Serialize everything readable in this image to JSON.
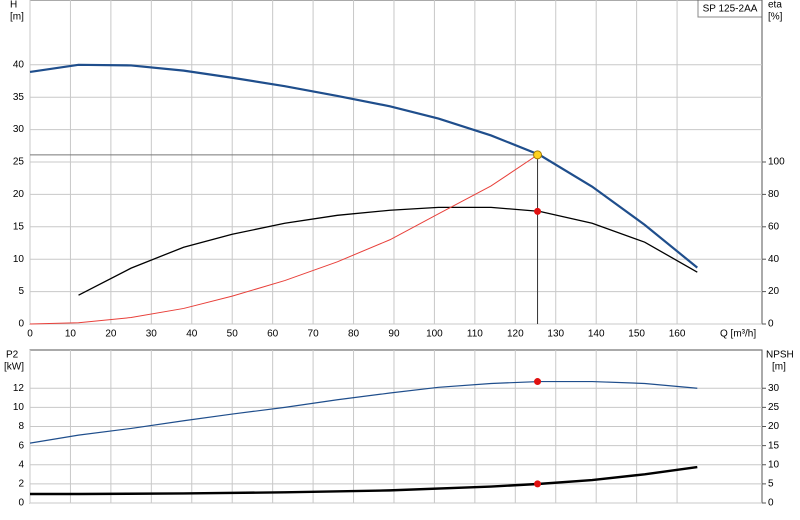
{
  "chart_data": [
    {
      "type": "line",
      "title": "SP 125-2AA",
      "ylabel": "H",
      "ylabel_unit": "[m]",
      "y2label": "eta",
      "y2label_unit": "[%]",
      "xlabel": "Q [m³/h]",
      "xlim": [
        0,
        181
      ],
      "xticks": [
        0,
        10,
        20,
        30,
        40,
        50,
        60,
        70,
        80,
        90,
        100,
        110,
        120,
        130,
        140,
        150,
        160
      ],
      "ylim": [
        0,
        50
      ],
      "yticks": [
        0,
        5,
        10,
        15,
        20,
        25,
        30,
        35,
        40
      ],
      "y2lim": [
        0,
        200
      ],
      "y2ticks": [
        0,
        20,
        40,
        60,
        80,
        100
      ],
      "grid": true,
      "series": [
        {
          "color": "#1f4e8c",
          "width": 2.2,
          "x": [
            0,
            12,
            25,
            38,
            50,
            63,
            76,
            89,
            101,
            114,
            126,
            139,
            152,
            165
          ],
          "values": [
            38.9,
            40,
            39.9,
            39.1,
            38,
            36.7,
            35.2,
            33.6,
            31.7,
            29.1,
            26.1,
            21.2,
            15.3,
            8.7
          ]
        },
        {
          "color": "#000000",
          "width": 1.3,
          "axis": "y2",
          "x": [
            12,
            25,
            38,
            50,
            63,
            76,
            89,
            101,
            114,
            126,
            139,
            152,
            165
          ],
          "values": [
            17.8,
            34.5,
            47.4,
            55.4,
            62.2,
            67.1,
            70.2,
            72,
            72,
            69.5,
            62.2,
            50.5,
            32
          ]
        },
        {
          "color": "#e8403a",
          "width": 1,
          "x": [
            0,
            12,
            25,
            38,
            50,
            63,
            76,
            89,
            101,
            114,
            125.5
          ],
          "values": [
            0,
            0.2,
            1,
            2.4,
            4.3,
            6.7,
            9.6,
            13,
            17,
            21.3,
            26.1
          ]
        }
      ],
      "operating_point": {
        "x": 125.5,
        "y": 26.1,
        "y2": 69.5
      }
    },
    {
      "type": "line",
      "ylabel": "P2",
      "ylabel_unit": "[kW]",
      "y2label": "NPSH",
      "y2label_unit": "[m]",
      "xlim": [
        0,
        181
      ],
      "xticks": [
        0,
        10,
        20,
        30,
        40,
        50,
        60,
        70,
        80,
        90,
        100,
        110,
        120,
        130,
        140,
        150,
        160
      ],
      "ylim": [
        0,
        16
      ],
      "yticks": [
        0,
        2,
        4,
        6,
        8,
        10,
        12
      ],
      "y2lim": [
        0,
        40
      ],
      "y2ticks": [
        0,
        5,
        10,
        15,
        20,
        25,
        30
      ],
      "grid": true,
      "series": [
        {
          "color": "#1f4e8c",
          "width": 1.2,
          "x": [
            0,
            12,
            25,
            38,
            50,
            63,
            76,
            89,
            101,
            114,
            126,
            139,
            152,
            165
          ],
          "values": [
            6.26,
            7.1,
            7.8,
            8.6,
            9.3,
            10,
            10.8,
            11.5,
            12.1,
            12.5,
            12.7,
            12.7,
            12.5,
            12
          ]
        },
        {
          "color": "#000000",
          "width": 2.4,
          "axis": "y2",
          "x": [
            0,
            12,
            38,
            63,
            89,
            114,
            126,
            139,
            152,
            165
          ],
          "values": [
            2.35,
            2.35,
            2.5,
            2.8,
            3.3,
            4.3,
            5,
            6,
            7.5,
            9.4
          ]
        }
      ],
      "operating_point": {
        "x": 125.5,
        "y": 12.7,
        "y2": 5
      }
    }
  ]
}
